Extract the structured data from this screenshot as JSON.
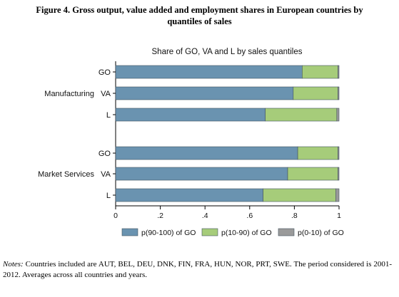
{
  "figure": {
    "title_line1": "Figure 4. Gross output, value added and employment shares in European countries by",
    "title_line2": "quantiles of sales"
  },
  "notes": {
    "lead": "Notes: ",
    "text": "Countries included are AUT, BEL, DEU, DNK, FIN, FRA, HUN, NOR, PRT, SWE. The period considered is 2001-2012. Averages across all countries and years."
  },
  "chart_data": {
    "type": "bar",
    "orientation": "horizontal",
    "stacked": true,
    "title": "Share of GO, VA and L by sales quantiles",
    "groups": [
      {
        "name": "Manufacturing",
        "bars": [
          {
            "label": "GO",
            "values": [
              0.835,
              0.16,
              0.005
            ]
          },
          {
            "label": "VA",
            "values": [
              0.795,
              0.2,
              0.005
            ]
          },
          {
            "label": "L",
            "values": [
              0.67,
              0.32,
              0.01
            ]
          }
        ]
      },
      {
        "name": "Market Services",
        "bars": [
          {
            "label": "GO",
            "values": [
              0.815,
              0.18,
              0.005
            ]
          },
          {
            "label": "VA",
            "values": [
              0.77,
              0.225,
              0.005
            ]
          },
          {
            "label": "L",
            "values": [
              0.66,
              0.325,
              0.015
            ]
          }
        ]
      }
    ],
    "series": [
      {
        "name": "p(90-100) of GO",
        "color": "#6a93b0"
      },
      {
        "name": "p(10-90) of GO",
        "color": "#a6cc7a"
      },
      {
        "name": "p(0-10) of GO",
        "color": "#9a9a9a"
      }
    ],
    "xlim": [
      0,
      1
    ],
    "xticks": [
      0,
      0.2,
      0.4,
      0.6,
      0.8,
      1
    ],
    "xtick_labels": [
      "0",
      ".2",
      ".4",
      ".6",
      ".8",
      "1"
    ],
    "grid": false,
    "legend_position": "bottom"
  }
}
